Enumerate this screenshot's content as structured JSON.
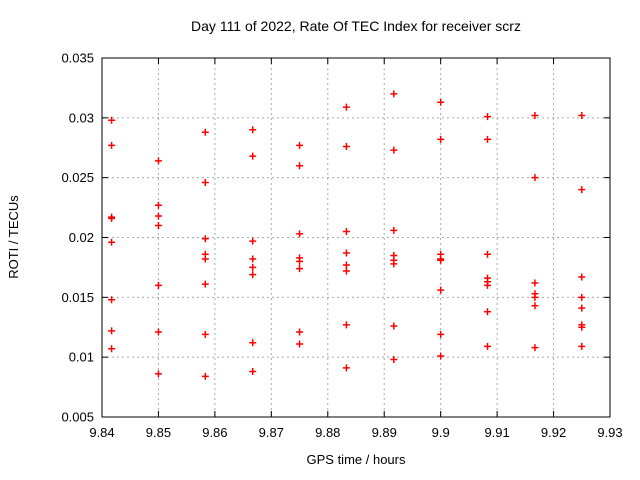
{
  "chart_data": {
    "type": "scatter",
    "title": "Day 111 of 2022, Rate Of TEC Index for receiver scrz",
    "xlabel": "GPS time / hours",
    "ylabel": "ROTI / TECUs",
    "xlim": [
      9.84,
      9.93
    ],
    "ylim": [
      0.005,
      0.035
    ],
    "grid": true,
    "legend": "none",
    "marker": "plus",
    "colors": {
      "marker": "#ff0000",
      "grid": "#aaaaaa",
      "axis": "#000000"
    },
    "xticks": [
      [
        9.84,
        "9.84"
      ],
      [
        9.85,
        "9.85"
      ],
      [
        9.86,
        "9.86"
      ],
      [
        9.87,
        "9.87"
      ],
      [
        9.88,
        "9.88"
      ],
      [
        9.89,
        "9.89"
      ],
      [
        9.9,
        "9.9"
      ],
      [
        9.91,
        "9.91"
      ],
      [
        9.92,
        "9.92"
      ],
      [
        9.93,
        "9.93"
      ]
    ],
    "yticks": [
      [
        0.005,
        "0.005"
      ],
      [
        0.01,
        "0.01"
      ],
      [
        0.015,
        "0.015"
      ],
      [
        0.02,
        "0.02"
      ],
      [
        0.025,
        "0.025"
      ],
      [
        0.03,
        "0.03"
      ],
      [
        0.035,
        "0.035"
      ]
    ],
    "points": [
      [
        9.8417,
        0.0298
      ],
      [
        9.8417,
        0.0277
      ],
      [
        9.8417,
        0.0217
      ],
      [
        9.8417,
        0.0216
      ],
      [
        9.8417,
        0.0196
      ],
      [
        9.8417,
        0.0148
      ],
      [
        9.8417,
        0.0122
      ],
      [
        9.8417,
        0.0107
      ],
      [
        9.85,
        0.0264
      ],
      [
        9.85,
        0.0227
      ],
      [
        9.85,
        0.0218
      ],
      [
        9.85,
        0.021
      ],
      [
        9.85,
        0.016
      ],
      [
        9.85,
        0.0121
      ],
      [
        9.85,
        0.0086
      ],
      [
        9.8583,
        0.0288
      ],
      [
        9.8583,
        0.0246
      ],
      [
        9.8583,
        0.0199
      ],
      [
        9.8583,
        0.0186
      ],
      [
        9.8583,
        0.0182
      ],
      [
        9.8583,
        0.0161
      ],
      [
        9.8583,
        0.0119
      ],
      [
        9.8583,
        0.0084
      ],
      [
        9.8667,
        0.029
      ],
      [
        9.8667,
        0.0268
      ],
      [
        9.8667,
        0.0197
      ],
      [
        9.8667,
        0.0182
      ],
      [
        9.8667,
        0.0175
      ],
      [
        9.8667,
        0.0169
      ],
      [
        9.8667,
        0.0112
      ],
      [
        9.8667,
        0.0088
      ],
      [
        9.875,
        0.0277
      ],
      [
        9.875,
        0.026
      ],
      [
        9.875,
        0.0203
      ],
      [
        9.875,
        0.0183
      ],
      [
        9.875,
        0.018
      ],
      [
        9.875,
        0.0174
      ],
      [
        9.875,
        0.0121
      ],
      [
        9.875,
        0.0111
      ],
      [
        9.8833,
        0.0309
      ],
      [
        9.8833,
        0.0276
      ],
      [
        9.8833,
        0.0205
      ],
      [
        9.8833,
        0.0187
      ],
      [
        9.8833,
        0.0177
      ],
      [
        9.8833,
        0.0172
      ],
      [
        9.8833,
        0.0127
      ],
      [
        9.8833,
        0.0091
      ],
      [
        9.8917,
        0.032
      ],
      [
        9.8917,
        0.0273
      ],
      [
        9.8917,
        0.0206
      ],
      [
        9.8917,
        0.0185
      ],
      [
        9.8917,
        0.0181
      ],
      [
        9.8917,
        0.0178
      ],
      [
        9.8917,
        0.0126
      ],
      [
        9.8917,
        0.0098
      ],
      [
        9.9,
        0.0313
      ],
      [
        9.9,
        0.0282
      ],
      [
        9.9,
        0.0186
      ],
      [
        9.9,
        0.0182
      ],
      [
        9.9,
        0.0181
      ],
      [
        9.9,
        0.0156
      ],
      [
        9.9,
        0.0119
      ],
      [
        9.9,
        0.0101
      ],
      [
        9.9083,
        0.0301
      ],
      [
        9.9083,
        0.0282
      ],
      [
        9.9083,
        0.0186
      ],
      [
        9.9083,
        0.0166
      ],
      [
        9.9083,
        0.0163
      ],
      [
        9.9083,
        0.016
      ],
      [
        9.9083,
        0.0138
      ],
      [
        9.9083,
        0.0109
      ],
      [
        9.9167,
        0.0302
      ],
      [
        9.9167,
        0.025
      ],
      [
        9.9167,
        0.0162
      ],
      [
        9.9167,
        0.0153
      ],
      [
        9.9167,
        0.015
      ],
      [
        9.9167,
        0.0143
      ],
      [
        9.9167,
        0.0108
      ],
      [
        9.925,
        0.0302
      ],
      [
        9.925,
        0.024
      ],
      [
        9.925,
        0.0167
      ],
      [
        9.925,
        0.015
      ],
      [
        9.925,
        0.0141
      ],
      [
        9.925,
        0.0127
      ],
      [
        9.925,
        0.0125
      ],
      [
        9.925,
        0.0109
      ]
    ]
  }
}
